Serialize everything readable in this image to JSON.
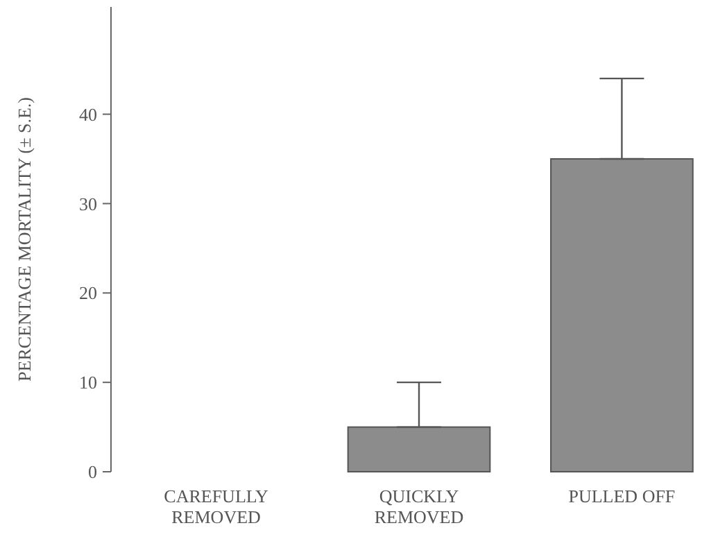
{
  "chart_data": {
    "type": "bar",
    "ylabel": "PERCENTAGE MORTALITY (± S.E.)",
    "categories": [
      "CAREFULLY REMOVED",
      "QUICKLY REMOVED",
      "PULLED OFF"
    ],
    "values": [
      0,
      5,
      35
    ],
    "errors": [
      null,
      [
        5,
        10
      ],
      [
        35,
        44
      ]
    ],
    "color": "#8c8c8c",
    "ylim": [
      0,
      52
    ],
    "yticks": [
      0,
      10,
      20,
      30,
      40
    ],
    "grid": false
  }
}
